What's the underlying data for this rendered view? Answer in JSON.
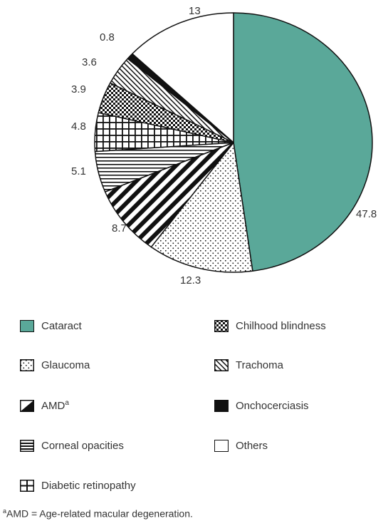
{
  "chart_data": {
    "type": "pie",
    "title": "",
    "slices": [
      {
        "label": "Cataract",
        "value": 47.8,
        "value_label": "47.8",
        "color": "#5aa899",
        "pattern": "solid"
      },
      {
        "label": "Glaucoma",
        "value": 12.3,
        "value_label": "12.3",
        "color": "#ffffff",
        "pattern": "dots"
      },
      {
        "label": "AMD",
        "label_sup": "a",
        "value": 8.7,
        "value_label": "8.7",
        "color": "#ffffff",
        "pattern": "diagonal-thick"
      },
      {
        "label": "Corneal opacities",
        "value": 5.1,
        "value_label": "5.1",
        "color": "#ffffff",
        "pattern": "horizontal"
      },
      {
        "label": "Diabetic retinopathy",
        "value": 4.8,
        "value_label": "4.8",
        "color": "#ffffff",
        "pattern": "grid"
      },
      {
        "label": "Chilhood blindness",
        "value": 3.9,
        "value_label": "3.9",
        "color": "#ffffff",
        "pattern": "checker"
      },
      {
        "label": "Trachoma",
        "value": 3.6,
        "value_label": "3.6",
        "color": "#ffffff",
        "pattern": "diagonal-thin"
      },
      {
        "label": "Onchocerciasis",
        "value": 0.8,
        "value_label": "0.8",
        "color": "#111111",
        "pattern": "solid"
      },
      {
        "label": "Others",
        "value": 13,
        "value_label": "13",
        "color": "#ffffff",
        "pattern": "none"
      }
    ],
    "start": "12 o'clock",
    "direction": "clockwise",
    "legend_placement": "bottom, two columns"
  },
  "legend": {
    "left_column": [
      "Cataract",
      "Glaucoma",
      "AMD",
      "Corneal opacities",
      "Diabetic retinopathy"
    ],
    "right_column": [
      "Chilhood blindness",
      "Trachoma",
      "Onchocerciasis",
      "Others"
    ]
  },
  "footnote": {
    "sup": "a",
    "text": "AMD = Age-related macular degeneration."
  }
}
